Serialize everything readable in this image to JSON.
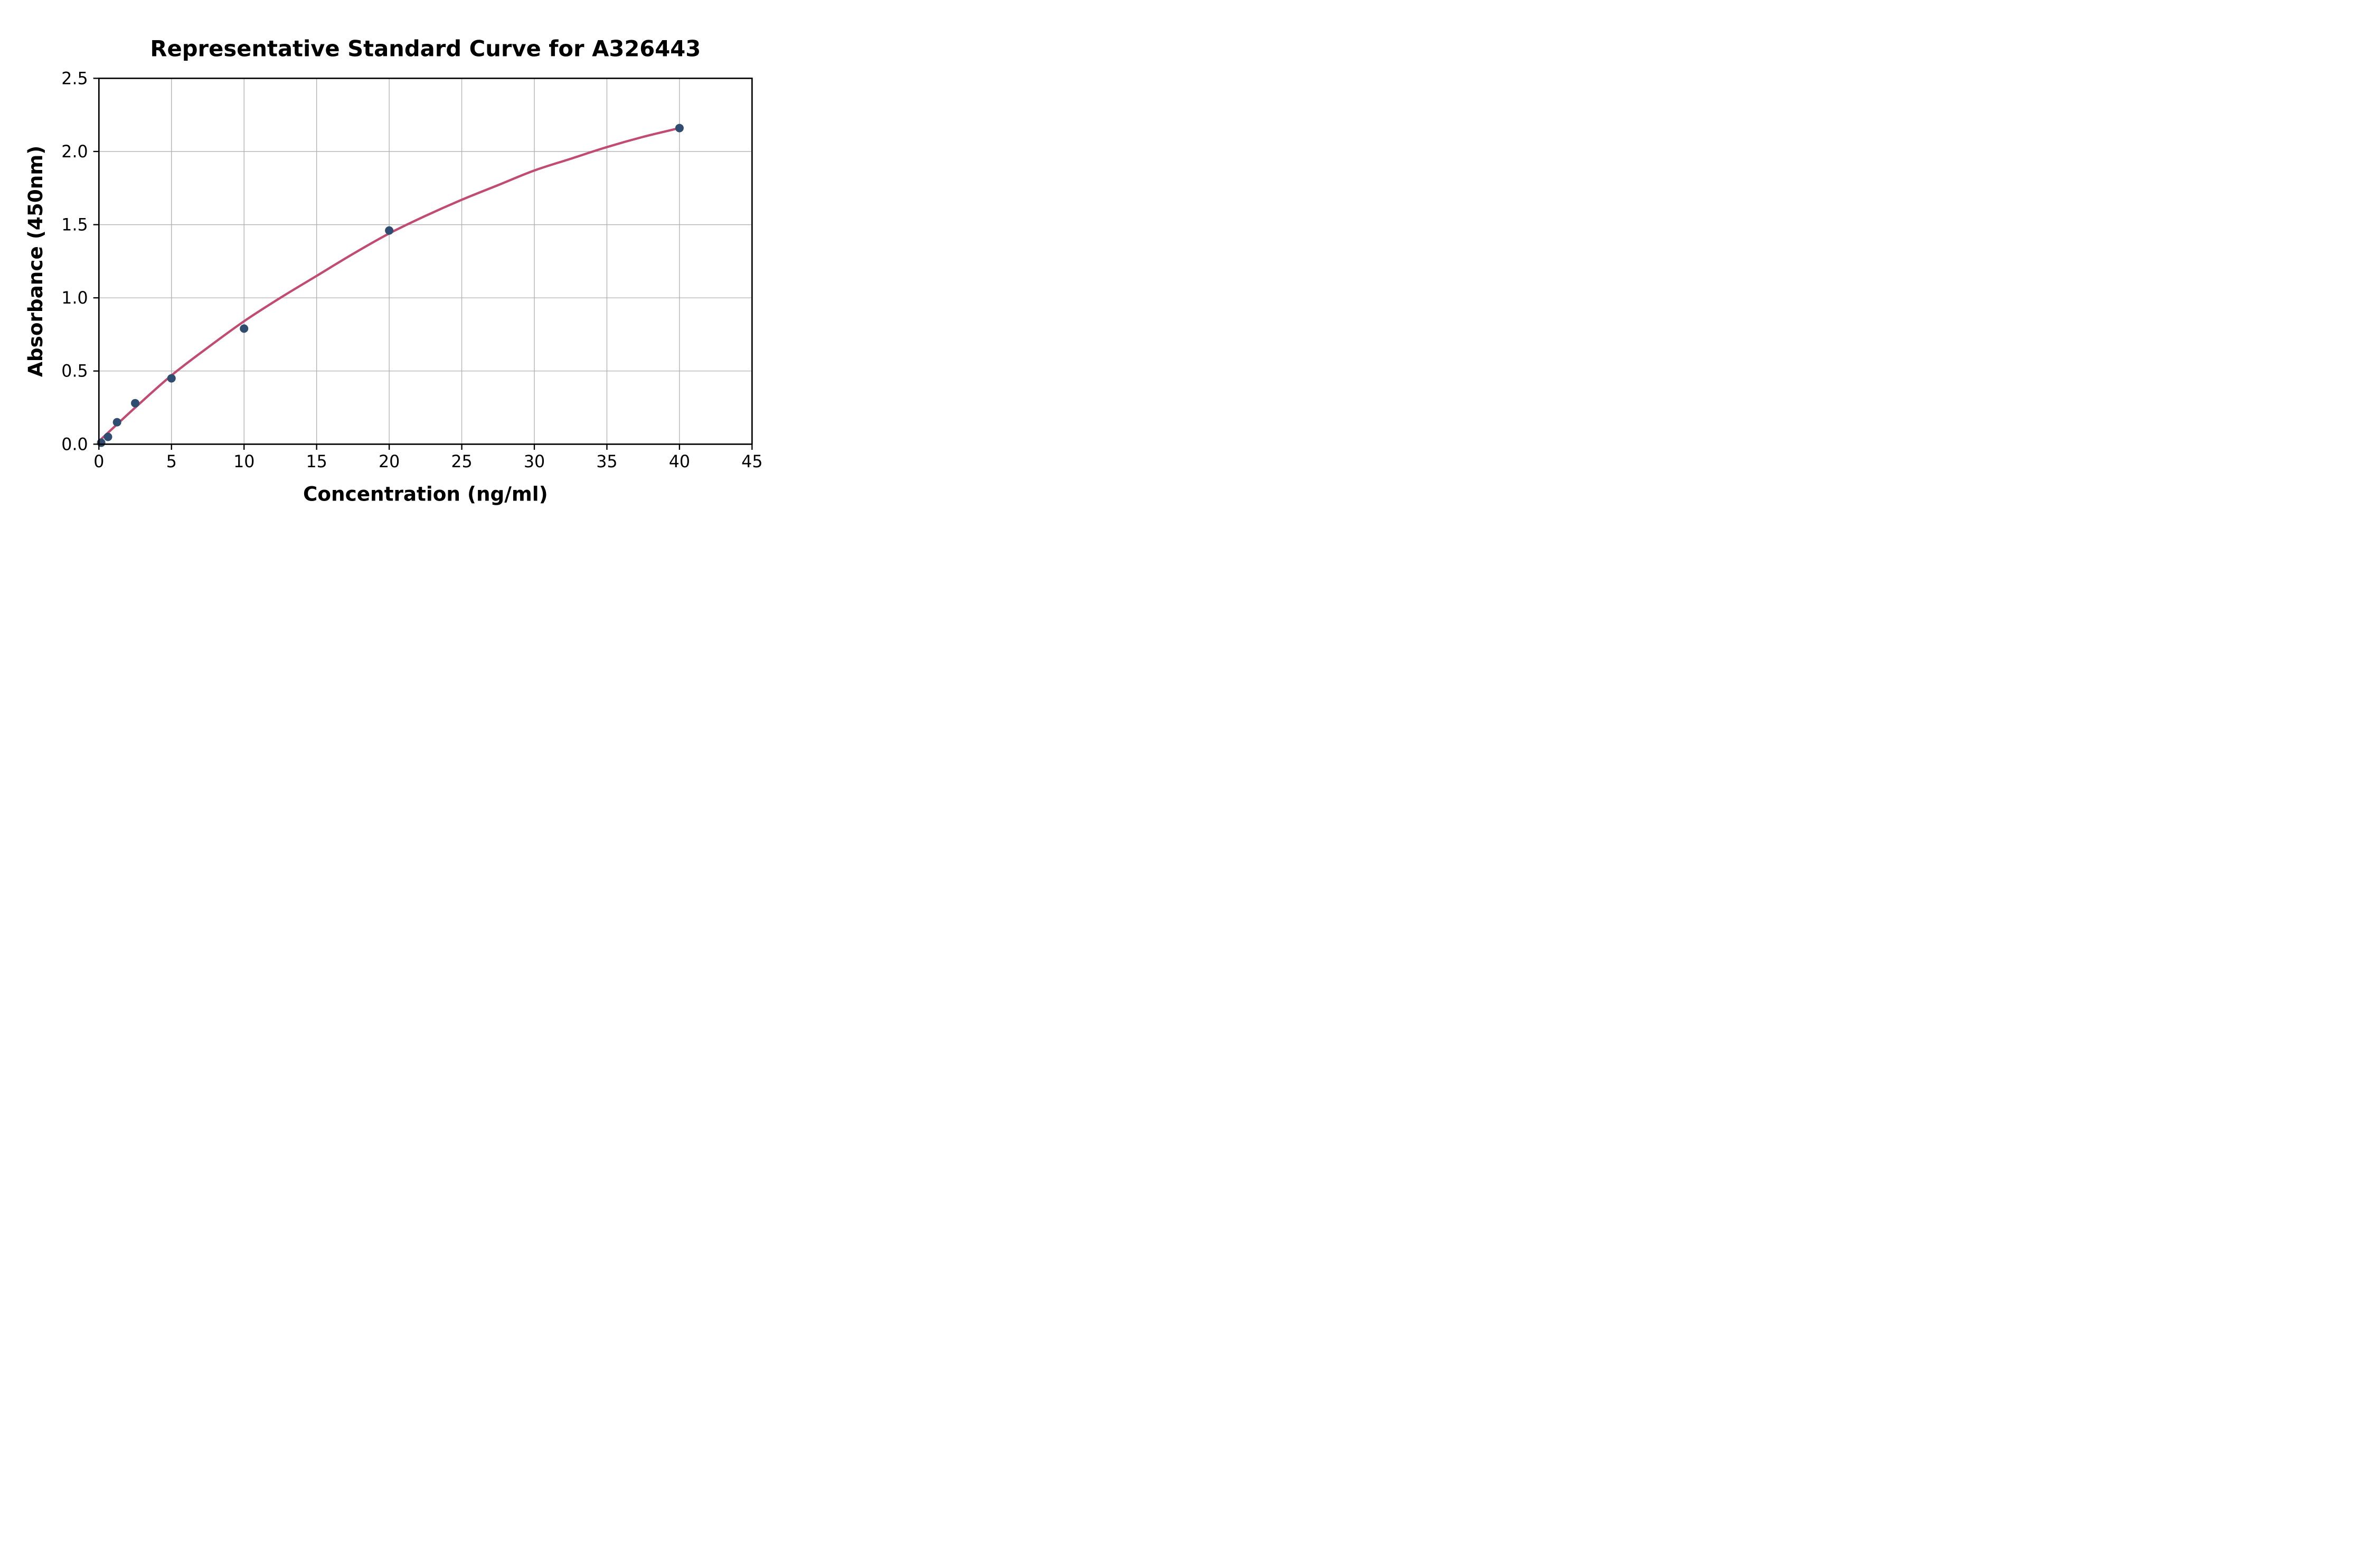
{
  "figure": {
    "background": "#ffffff",
    "title": "Representative Standard Curve for A326443"
  },
  "chart_data": {
    "type": "scatter",
    "title": "Representative Standard Curve for A326443",
    "xlabel": "Concentration (ng/ml)",
    "ylabel": "Absorbance (450nm)",
    "xlim": [
      0,
      45
    ],
    "ylim": [
      0,
      2.5
    ],
    "x_ticks": [
      0,
      5,
      10,
      15,
      20,
      25,
      30,
      35,
      40,
      45
    ],
    "x_tick_labels": [
      "0",
      "5",
      "10",
      "15",
      "20",
      "25",
      "30",
      "35",
      "40",
      "45"
    ],
    "y_ticks": [
      0,
      0.5,
      1.0,
      1.5,
      2.0,
      2.5
    ],
    "y_tick_labels": [
      "0.0",
      "0.5",
      "1.0",
      "1.5",
      "2.0",
      "2.5"
    ],
    "grid": true,
    "legend_position": "none",
    "series": [
      {
        "name": "standard-points",
        "kind": "scatter",
        "marker": "circle",
        "color": "#2F4D70",
        "points": [
          [
            0.156,
            0.01
          ],
          [
            0.625,
            0.05
          ],
          [
            1.25,
            0.15
          ],
          [
            2.5,
            0.28
          ],
          [
            5,
            0.45
          ],
          [
            10,
            0.79
          ],
          [
            20,
            1.46
          ],
          [
            40,
            2.16
          ]
        ]
      },
      {
        "name": "fitted-curve",
        "kind": "line",
        "color": "#C14B72",
        "points": [
          [
            0,
            0.02
          ],
          [
            2.5,
            0.25
          ],
          [
            5,
            0.47
          ],
          [
            7.5,
            0.66
          ],
          [
            10,
            0.84
          ],
          [
            12.5,
            1.0
          ],
          [
            15,
            1.15
          ],
          [
            17.5,
            1.3
          ],
          [
            20,
            1.44
          ],
          [
            22.5,
            1.56
          ],
          [
            25,
            1.67
          ],
          [
            27.5,
            1.77
          ],
          [
            30,
            1.87
          ],
          [
            32.5,
            1.95
          ],
          [
            35,
            2.03
          ],
          [
            37.5,
            2.1
          ],
          [
            40,
            2.16
          ]
        ]
      }
    ],
    "colors": {
      "grid": "#b0b0b0",
      "axes": "#000000",
      "marker": "#2F4D70",
      "curve": "#C14B72",
      "text": "#000000"
    }
  }
}
